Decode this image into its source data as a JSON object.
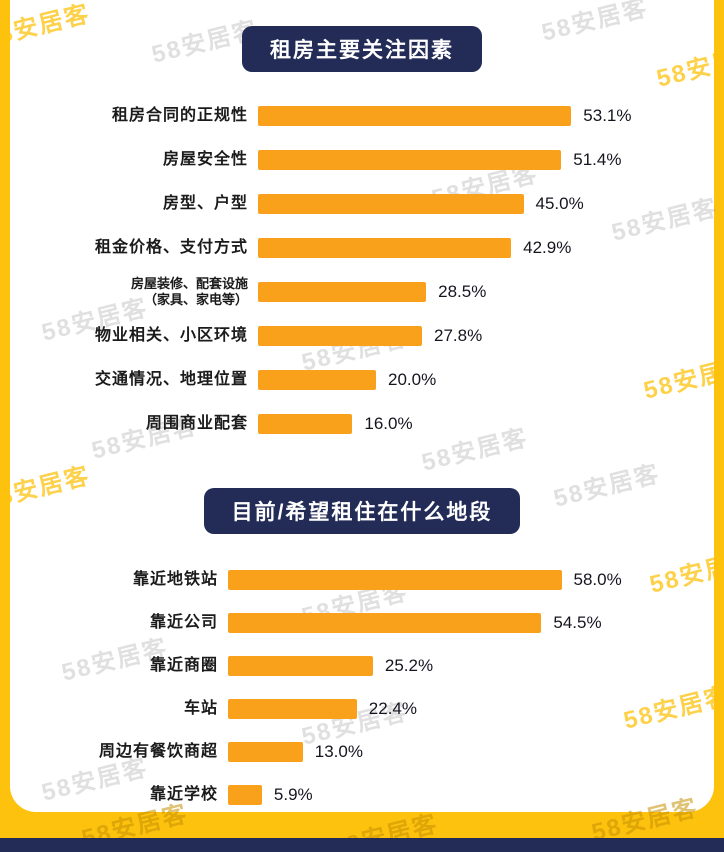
{
  "watermark": {
    "text": "58安居客"
  },
  "colors": {
    "bar_orange": "#F9A11B",
    "badge_navy": "#232B57",
    "frame_yellow": "#FDC20E",
    "footer_navy": "#232B57"
  },
  "chart_data": [
    {
      "type": "bar",
      "orientation": "horizontal",
      "title": "租房主要关注因素",
      "categories": [
        "租房合同的正规性",
        "房屋安全性",
        "房型、户型",
        "租金价格、支付方式",
        "房屋装修、配套设施\n（家具、家电等）",
        "物业相关、小区环境",
        "交通情况、地理位置",
        "周围商业配套"
      ],
      "values": [
        53.1,
        51.4,
        45.0,
        42.9,
        28.5,
        27.8,
        20.0,
        16.0
      ],
      "value_labels": [
        "53.1%",
        "51.4%",
        "45.0%",
        "42.9%",
        "28.5%",
        "27.8%",
        "20.0%",
        "16.0%"
      ],
      "xlim": [
        0,
        60
      ],
      "grid": false,
      "legend": false
    },
    {
      "type": "bar",
      "orientation": "horizontal",
      "title": "目前/希望租住在什么地段",
      "categories": [
        "靠近地铁站",
        "靠近公司",
        "靠近商圈",
        "车站",
        "周边有餐饮商超",
        "靠近学校"
      ],
      "values": [
        58.0,
        54.5,
        25.2,
        22.4,
        13.0,
        5.9
      ],
      "value_labels": [
        "58.0%",
        "54.5%",
        "25.2%",
        "22.4%",
        "13.0%",
        "5.9%"
      ],
      "xlim": [
        0,
        62
      ],
      "grid": false,
      "legend": false
    }
  ]
}
